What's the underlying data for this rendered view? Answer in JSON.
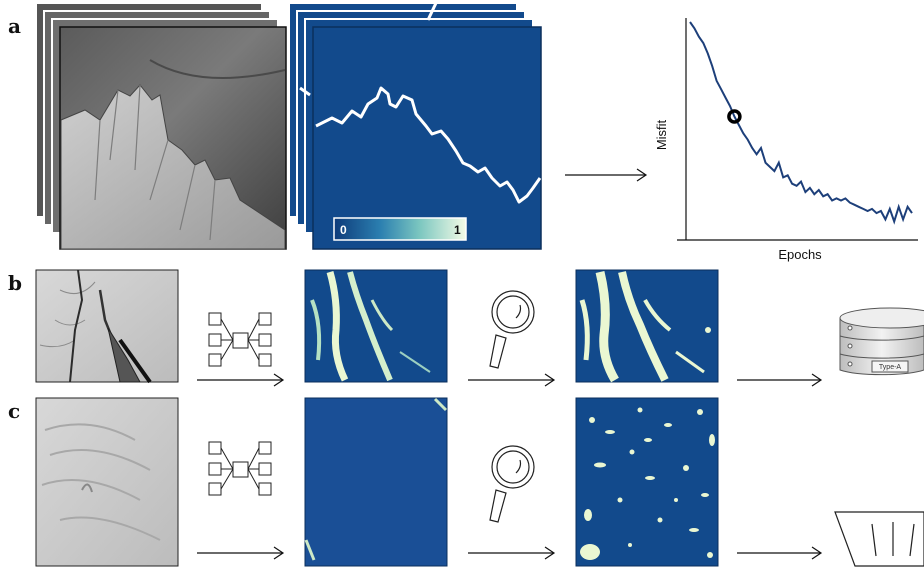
{
  "panels": {
    "a": {
      "letter": "a"
    },
    "b": {
      "letter": "b"
    },
    "c": {
      "letter": "c"
    }
  },
  "colorbar": {
    "min_label": "0",
    "max_label": "1"
  },
  "database_tag": "Type-A",
  "chart_data": {
    "type": "line",
    "title": "",
    "xlabel": "Epochs",
    "ylabel": "Misfit",
    "x": [
      0,
      1,
      2,
      3,
      4,
      5,
      6,
      7,
      8,
      9,
      10,
      11,
      12,
      13,
      14,
      15,
      16,
      17,
      18,
      19,
      20,
      21,
      22,
      23,
      24,
      25,
      26,
      27,
      28,
      29,
      30,
      31,
      32,
      33,
      34,
      35,
      36,
      37,
      38,
      39,
      40,
      41,
      42,
      43,
      44,
      45,
      46,
      47,
      48,
      49,
      50
    ],
    "series": [
      {
        "values": [
          1.0,
          0.97,
          0.93,
          0.9,
          0.85,
          0.79,
          0.72,
          0.68,
          0.64,
          0.6,
          0.55,
          0.51,
          0.47,
          0.44,
          0.4,
          0.37,
          0.4,
          0.33,
          0.31,
          0.29,
          0.33,
          0.26,
          0.27,
          0.23,
          0.22,
          0.24,
          0.19,
          0.21,
          0.18,
          0.2,
          0.17,
          0.18,
          0.15,
          0.16,
          0.15,
          0.16,
          0.14,
          0.13,
          0.12,
          0.11,
          0.1,
          0.11,
          0.09,
          0.1,
          0.06,
          0.11,
          0.05,
          0.12,
          0.06,
          0.12,
          0.09
        ],
        "color": "#1d3f7a"
      }
    ],
    "marker_x": 10,
    "grid": false
  },
  "colors": {
    "map_blue": "#124a8c",
    "highlight": "#eaf7d2",
    "line": "#1d3f7a"
  }
}
